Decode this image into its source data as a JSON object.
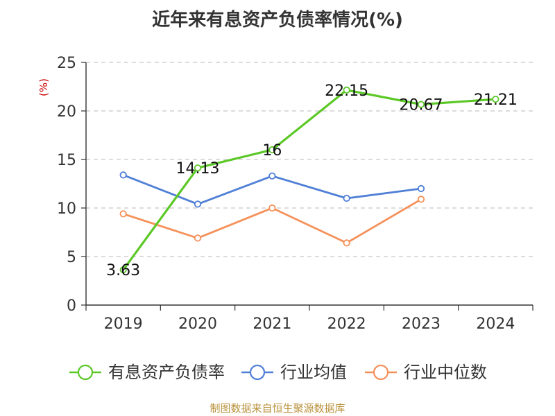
{
  "chart_data": {
    "type": "line",
    "title": "近年来有息资产负债率情况(%)",
    "ylabel": "(%)",
    "categories": [
      "2019",
      "2020",
      "2021",
      "2022",
      "2023",
      "2024"
    ],
    "yticks": [
      "0",
      "5",
      "10",
      "15",
      "20",
      "25"
    ],
    "ylim": [
      0,
      25
    ],
    "grid": "horizontal dashed",
    "legend_position": "bottom",
    "series": [
      {
        "name": "有息资产负债率",
        "color": "#5cc827",
        "values": [
          3.63,
          14.13,
          16,
          22.15,
          20.67,
          21.21
        ],
        "labels": [
          "3.63",
          "14.13",
          "16",
          "22.15",
          "20.67",
          "21.21"
        ]
      },
      {
        "name": "行业均值",
        "color": "#4f7fd6",
        "values": [
          13.4,
          10.4,
          13.3,
          11.0,
          12.0,
          null
        ]
      },
      {
        "name": "行业中位数",
        "color": "#f5915a",
        "values": [
          9.4,
          6.9,
          10.0,
          6.4,
          10.9,
          null
        ]
      }
    ]
  },
  "footer": {
    "source": "制图数据来自恒生聚源数据库"
  }
}
